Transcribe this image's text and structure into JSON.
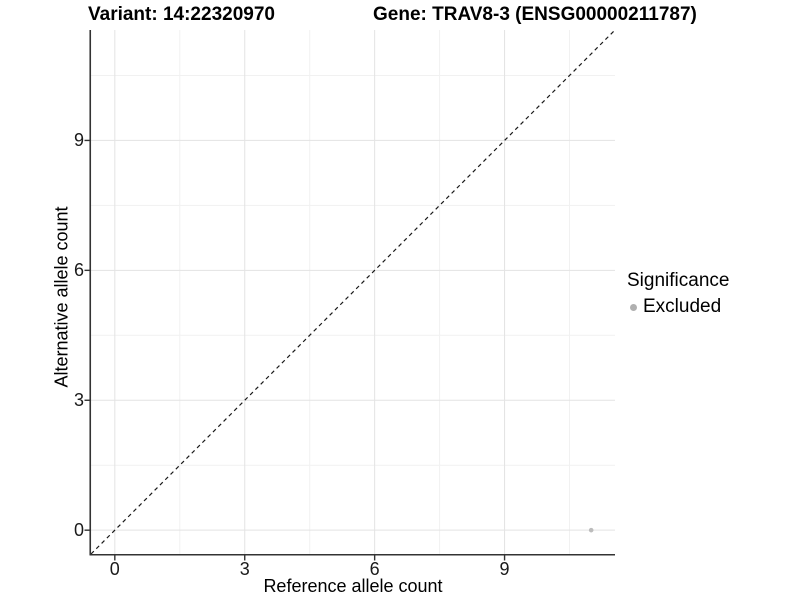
{
  "titles": {
    "variant": "Variant: 14:22320970",
    "gene": "Gene: TRAV8-3 (ENSG00000211787)"
  },
  "legend": {
    "title": "Significance",
    "items": [
      {
        "label": "Excluded",
        "color": "#b0b0b0"
      }
    ]
  },
  "chart_data": {
    "type": "scatter",
    "title": "Variant: 14:22320970  |  Gene: TRAV8-3 (ENSG00000211787)",
    "xlabel": "Reference allele count",
    "ylabel": "Alternative allele count",
    "xlim": [
      -0.55,
      11.55
    ],
    "ylim": [
      -0.55,
      11.55
    ],
    "x_ticks": [
      0,
      3,
      6,
      9
    ],
    "y_ticks": [
      0,
      3,
      6,
      9
    ],
    "x_minor_ticks": [
      1.5,
      4.5,
      7.5,
      10.5
    ],
    "y_minor_ticks": [
      1.5,
      4.5,
      7.5,
      10.5
    ],
    "grid": true,
    "legend_position": "right",
    "reference_line": {
      "kind": "identity y=x",
      "style": "dashed",
      "color": "#1a1a1a"
    },
    "series": [
      {
        "name": "Excluded",
        "color": "#b0b0b0",
        "points": [
          {
            "x": 11,
            "y": 0
          }
        ]
      }
    ],
    "colors": {
      "grid_major": "#e3e3e3",
      "grid_minor": "#f1f1f1",
      "axis_line": "#333333",
      "tick_mark": "#333333",
      "point": "#bcbcbc"
    }
  }
}
